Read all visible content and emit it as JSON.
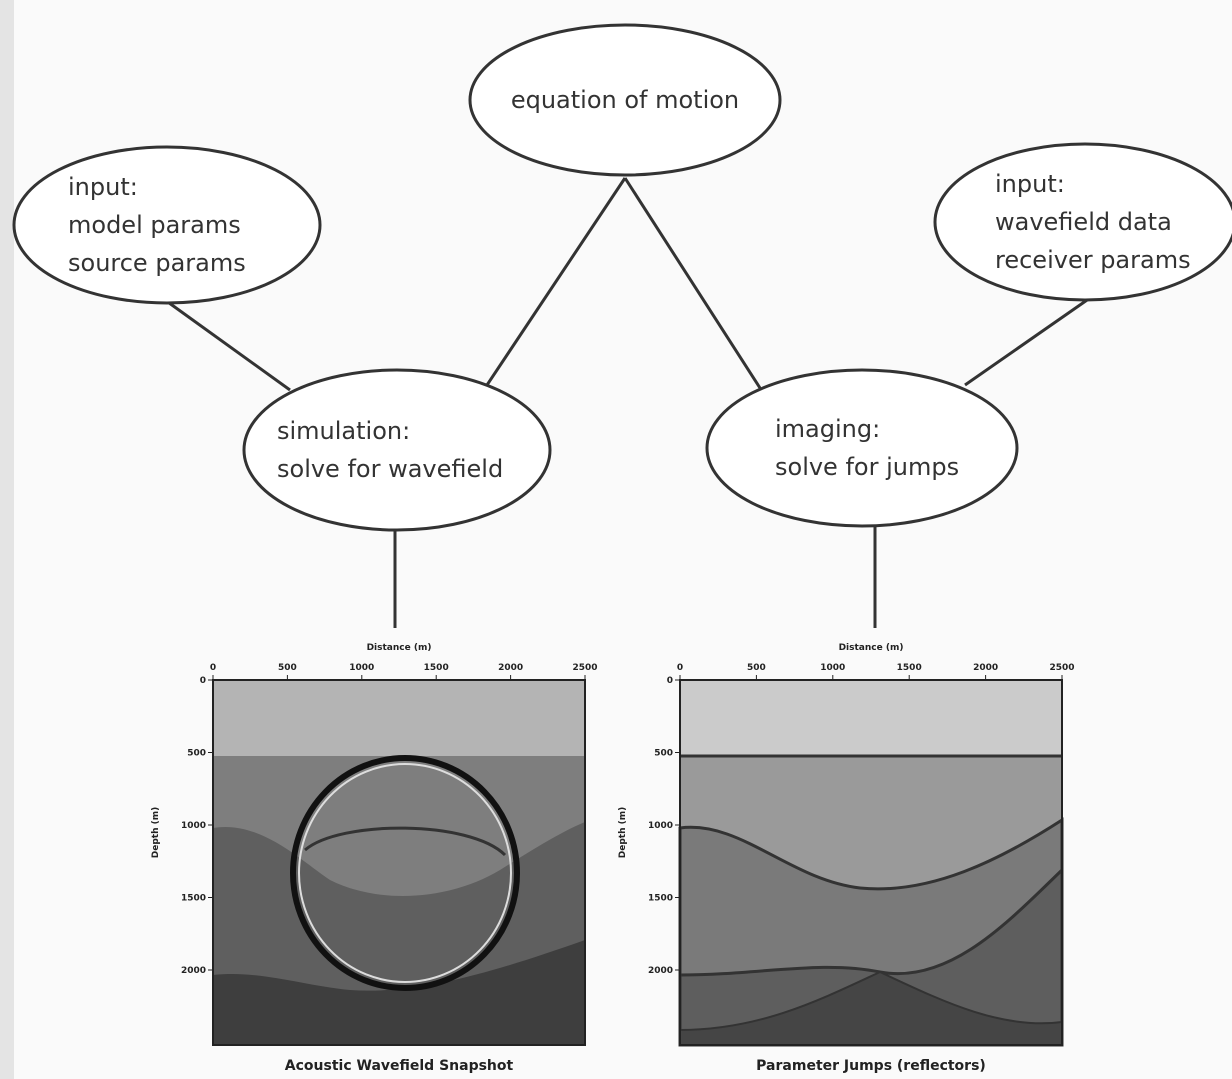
{
  "nodes": [
    {
      "lines": [
        "equation of motion"
      ]
    },
    {
      "lines": [
        "input:",
        "model params",
        "source params"
      ]
    },
    {
      "lines": [
        "input:",
        "wavefield data",
        "receiver params"
      ]
    },
    {
      "lines": [
        "simulation:",
        "solve for wavefield"
      ]
    },
    {
      "lines": [
        "imaging:",
        "solve for jumps"
      ]
    }
  ],
  "panels": [
    {
      "x_label": "Distance (m)",
      "y_label": "Depth (m)",
      "xticks": [
        "0",
        "500",
        "1000",
        "1500",
        "2000",
        "2500"
      ],
      "yticks": [
        "0",
        "500",
        "1000",
        "1500",
        "2000"
      ],
      "caption": "Acoustic Wavefield Snapshot"
    },
    {
      "x_label": "Distance (m)",
      "y_label": "Depth (m)",
      "xticks": [
        "0",
        "500",
        "1000",
        "1500",
        "2000",
        "2500"
      ],
      "yticks": [
        "0",
        "500",
        "1000",
        "1500",
        "2000"
      ],
      "caption": "Parameter Jumps (reflectors)"
    }
  ]
}
